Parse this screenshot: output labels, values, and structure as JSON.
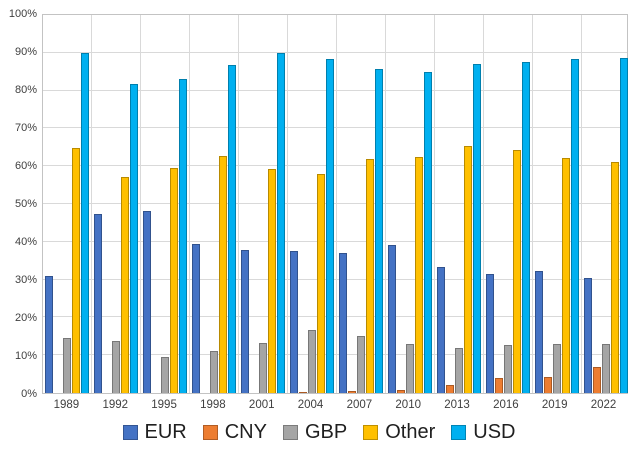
{
  "chart_data": {
    "type": "bar",
    "title": "",
    "xlabel": "",
    "ylabel": "",
    "ylim": [
      0,
      100
    ],
    "ytick_step": 10,
    "ytick_labels": [
      "0%",
      "10%",
      "20%",
      "30%",
      "40%",
      "50%",
      "60%",
      "70%",
      "80%",
      "90%",
      "100%"
    ],
    "grid": true,
    "legend_position": "bottom",
    "categories": [
      "1989",
      "1992",
      "1995",
      "1998",
      "2001",
      "2004",
      "2007",
      "2010",
      "2013",
      "2016",
      "2019",
      "2022"
    ],
    "series": [
      {
        "name": "EUR",
        "color": "#4472C4",
        "values": [
          31.0,
          47.3,
          48.2,
          39.5,
          37.9,
          37.5,
          37.0,
          39.1,
          33.4,
          31.4,
          32.3,
          30.5
        ]
      },
      {
        "name": "CNY",
        "color": "#ED7D31",
        "values": [
          0,
          0,
          0,
          0,
          0,
          0.1,
          0.5,
          0.9,
          2.2,
          4.0,
          4.3,
          7.0
        ]
      },
      {
        "name": "GBP",
        "color": "#A5A5A5",
        "values": [
          14.5,
          13.7,
          9.4,
          11.2,
          13.1,
          16.6,
          15.0,
          12.9,
          11.8,
          12.8,
          12.9,
          12.9
        ]
      },
      {
        "name": "Other",
        "color": "#FFC000",
        "values": [
          64.9,
          57.1,
          59.5,
          62.8,
          59.3,
          58.0,
          62.0,
          62.5,
          65.4,
          64.2,
          62.2,
          61.0
        ]
      },
      {
        "name": "USD",
        "color": "#00B0F0",
        "values": [
          90.0,
          81.8,
          83.0,
          86.8,
          90.0,
          88.3,
          85.7,
          84.9,
          87.0,
          87.6,
          88.3,
          88.5
        ]
      }
    ]
  }
}
